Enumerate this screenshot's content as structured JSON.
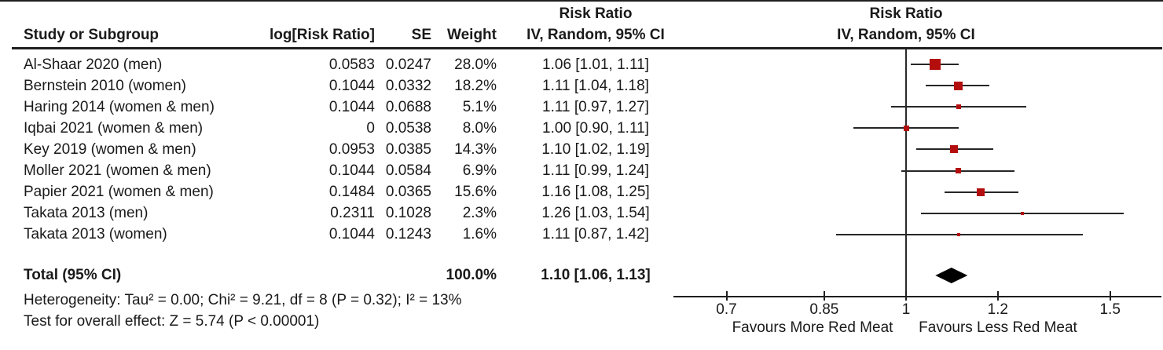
{
  "table": {
    "header": {
      "study": "Study or Subgroup",
      "log_rr": "log[Risk Ratio]",
      "se": "SE",
      "weight": "Weight",
      "effect_title": "Risk Ratio",
      "effect_subtitle": "IV, Random, 95% CI"
    },
    "rows": [
      {
        "study": "Al-Shaar 2020 (men)",
        "log_rr": "0.0583",
        "se": "0.0247",
        "weight": "28.0%",
        "ci_text": "1.06 [1.01, 1.11]"
      },
      {
        "study": "Bernstein 2010 (women)",
        "log_rr": "0.1044",
        "se": "0.0332",
        "weight": "18.2%",
        "ci_text": "1.11 [1.04, 1.18]"
      },
      {
        "study": "Haring 2014 (women & men)",
        "log_rr": "0.1044",
        "se": "0.0688",
        "weight": "5.1%",
        "ci_text": "1.11 [0.97, 1.27]"
      },
      {
        "study": "Iqbai 2021 (women & men)",
        "log_rr": "0",
        "se": "0.0538",
        "weight": "8.0%",
        "ci_text": "1.00 [0.90, 1.11]"
      },
      {
        "study": "Key 2019 (women & men)",
        "log_rr": "0.0953",
        "se": "0.0385",
        "weight": "14.3%",
        "ci_text": "1.10 [1.02, 1.19]"
      },
      {
        "study": "Moller 2021 (women & men)",
        "log_rr": "0.1044",
        "se": "0.0584",
        "weight": "6.9%",
        "ci_text": "1.11 [0.99, 1.24]"
      },
      {
        "study": "Papier 2021 (women & men)",
        "log_rr": "0.1484",
        "se": "0.0365",
        "weight": "15.6%",
        "ci_text": "1.16 [1.08, 1.25]"
      },
      {
        "study": "Takata 2013 (men)",
        "log_rr": "0.2311",
        "se": "0.1028",
        "weight": "2.3%",
        "ci_text": "1.26 [1.03, 1.54]"
      },
      {
        "study": "Takata 2013 (women)",
        "log_rr": "0.1044",
        "se": "0.1243",
        "weight": "1.6%",
        "ci_text": "1.11 [0.87, 1.42]"
      }
    ],
    "total": {
      "label": "Total (95% CI)",
      "weight": "100.0%",
      "ci_text": "1.10 [1.06, 1.13]"
    }
  },
  "footer": {
    "heterogeneity": "Heterogeneity: Tau² = 0.00; Chi² = 9.21, df = 8 (P = 0.32); I² = 13%",
    "overall_effect": "Test for overall effect: Z = 5.74 (P < 0.00001)"
  },
  "plot_header": {
    "title": "Risk Ratio",
    "subtitle": "IV, Random, 95% CI"
  },
  "chart_data": {
    "type": "forest",
    "title": "Risk Ratio",
    "subtitle": "IV, Random, 95% CI",
    "x_scale": "log",
    "x_ticks": [
      0.7,
      0.85,
      1,
      1.2,
      1.5
    ],
    "x_tick_labels": [
      "0.7",
      "0.85",
      "1",
      "1.2",
      "1.5"
    ],
    "null_line": 1,
    "favours_left": "Favours More Red Meat",
    "favours_right": "Favours Less Red Meat",
    "studies": [
      {
        "name": "Al-Shaar 2020 (men)",
        "rr": 1.06,
        "lo": 1.01,
        "hi": 1.11,
        "weight": 28.0
      },
      {
        "name": "Bernstein 2010 (women)",
        "rr": 1.11,
        "lo": 1.04,
        "hi": 1.18,
        "weight": 18.2
      },
      {
        "name": "Haring 2014 (women & men)",
        "rr": 1.11,
        "lo": 0.97,
        "hi": 1.27,
        "weight": 5.1
      },
      {
        "name": "Iqbai 2021 (women & men)",
        "rr": 1.0,
        "lo": 0.9,
        "hi": 1.11,
        "weight": 8.0
      },
      {
        "name": "Key 2019 (women & men)",
        "rr": 1.1,
        "lo": 1.02,
        "hi": 1.19,
        "weight": 14.3
      },
      {
        "name": "Moller 2021 (women & men)",
        "rr": 1.11,
        "lo": 0.99,
        "hi": 1.24,
        "weight": 6.9
      },
      {
        "name": "Papier 2021 (women & men)",
        "rr": 1.16,
        "lo": 1.08,
        "hi": 1.25,
        "weight": 15.6
      },
      {
        "name": "Takata 2013 (men)",
        "rr": 1.26,
        "lo": 1.03,
        "hi": 1.54,
        "weight": 2.3
      },
      {
        "name": "Takata 2013 (women)",
        "rr": 1.11,
        "lo": 0.87,
        "hi": 1.42,
        "weight": 1.6
      }
    ],
    "total": {
      "rr": 1.1,
      "lo": 1.06,
      "hi": 1.13
    }
  },
  "colors": {
    "square": "#b30d0d",
    "diamond": "#000000",
    "line": "#262626",
    "text": "#1a1a1a"
  }
}
